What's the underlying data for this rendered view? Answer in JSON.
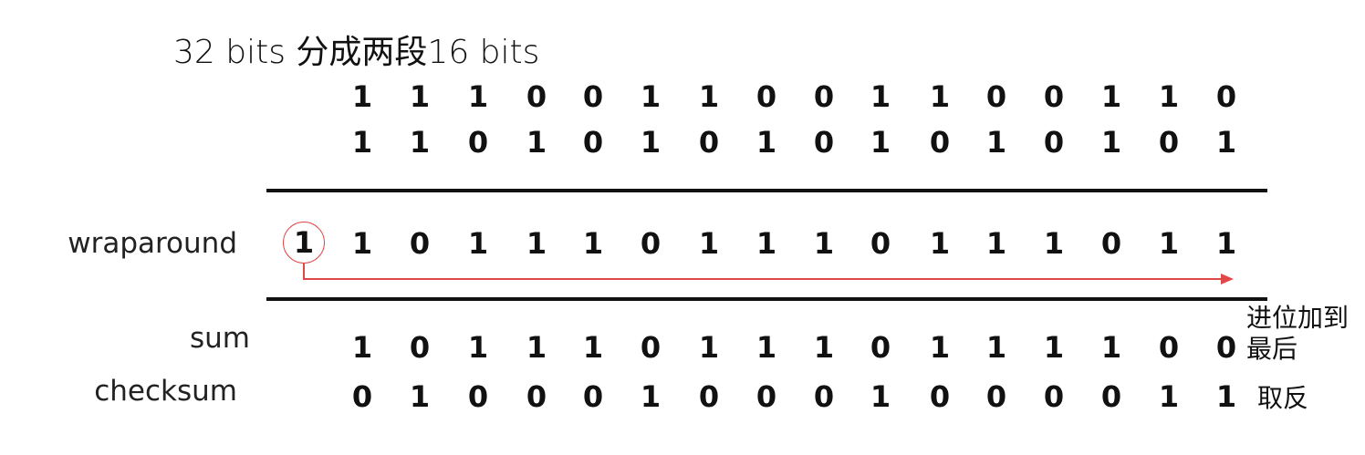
{
  "title": "32 bits 分成两段16 bits",
  "rows": {
    "a": {
      "label": "",
      "bits": [
        "1",
        "1",
        "1",
        "0",
        "0",
        "1",
        "1",
        "0",
        "0",
        "1",
        "1",
        "0",
        "0",
        "1",
        "1",
        "0"
      ]
    },
    "b": {
      "label": "",
      "bits": [
        "1",
        "1",
        "0",
        "1",
        "0",
        "1",
        "0",
        "1",
        "0",
        "1",
        "0",
        "1",
        "0",
        "1",
        "0",
        "1"
      ]
    },
    "wrap": {
      "label": "wraparound",
      "carry": "1",
      "bits": [
        "1",
        "0",
        "1",
        "1",
        "1",
        "0",
        "1",
        "1",
        "1",
        "0",
        "1",
        "1",
        "1",
        "0",
        "1",
        "1"
      ]
    },
    "sum": {
      "label": "sum",
      "bits": [
        "1",
        "0",
        "1",
        "1",
        "1",
        "0",
        "1",
        "1",
        "1",
        "0",
        "1",
        "1",
        "1",
        "1",
        "0",
        "0"
      ]
    },
    "checksum": {
      "label": "checksum",
      "bits": [
        "0",
        "1",
        "0",
        "0",
        "0",
        "1",
        "0",
        "0",
        "0",
        "1",
        "0",
        "0",
        "0",
        "0",
        "1",
        "1"
      ]
    }
  },
  "notes": {
    "carry_note": "进位加到最后",
    "invert_note": "取反"
  },
  "colors": {
    "accent": "#e04848",
    "text": "#111111"
  }
}
